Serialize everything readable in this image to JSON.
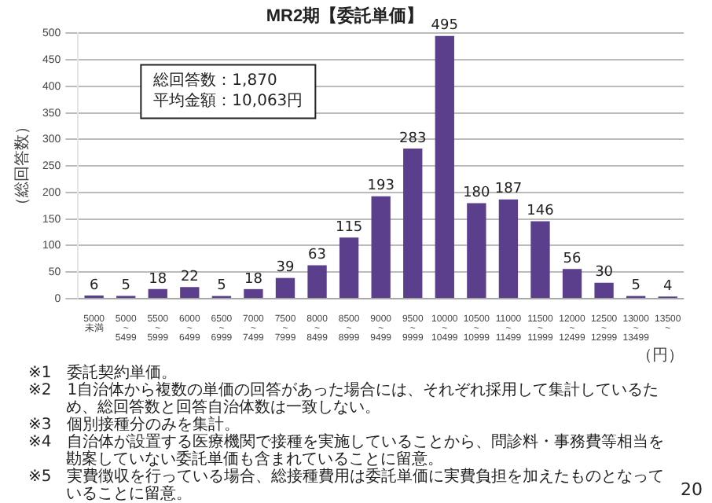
{
  "chart_data": {
    "type": "bar",
    "title": "MR2期【委託単価】",
    "ylabel": "（総回答数）",
    "xlabel": "（円）",
    "categories": [
      "5000\n未満",
      "5000\n~\n5499",
      "5500\n~\n5999",
      "6000\n~\n6499",
      "6500\n~\n6999",
      "7000\n~\n7499",
      "7500\n~\n7999",
      "8000\n~\n8499",
      "8500\n~\n8999",
      "9000\n~\n9499",
      "9500\n~\n9999",
      "10000\n~\n10499",
      "10500\n~\n10999",
      "11000\n~\n11499",
      "11500\n~\n11999",
      "12000\n~\n12499",
      "12500\n~\n12999",
      "13000\n~\n13499",
      "13500\n~"
    ],
    "values": [
      6,
      5,
      18,
      22,
      5,
      18,
      39,
      63,
      115,
      193,
      283,
      495,
      180,
      187,
      146,
      56,
      30,
      5,
      4
    ],
    "color": "#5b3f8c",
    "ylim": [
      0,
      500
    ],
    "yticks": [
      0,
      50,
      100,
      150,
      200,
      250,
      300,
      350,
      400,
      450,
      500
    ],
    "grid": "y",
    "data_labels": true,
    "annotations": [
      "総回答数：1,870",
      "平均金額：10,063円",
      "※1　委託契約単価。",
      "※2　1自治体から複数の単価の回答があった場合には、それぞれ採用して集計しているため、総回答数と回答自治体数は一致しない。",
      "※3　個別接種分のみを集計。",
      "※4　自治体が設置する医療機関で接種を実施していることから、問診料・事務費等相当を勘案していない委託単価も含まれていることに留意。",
      "※5　実費徴収を行っている場合、総接種費用は委託単価に実費負担を加えたものとなっていることに留意。",
      "20"
    ]
  }
}
